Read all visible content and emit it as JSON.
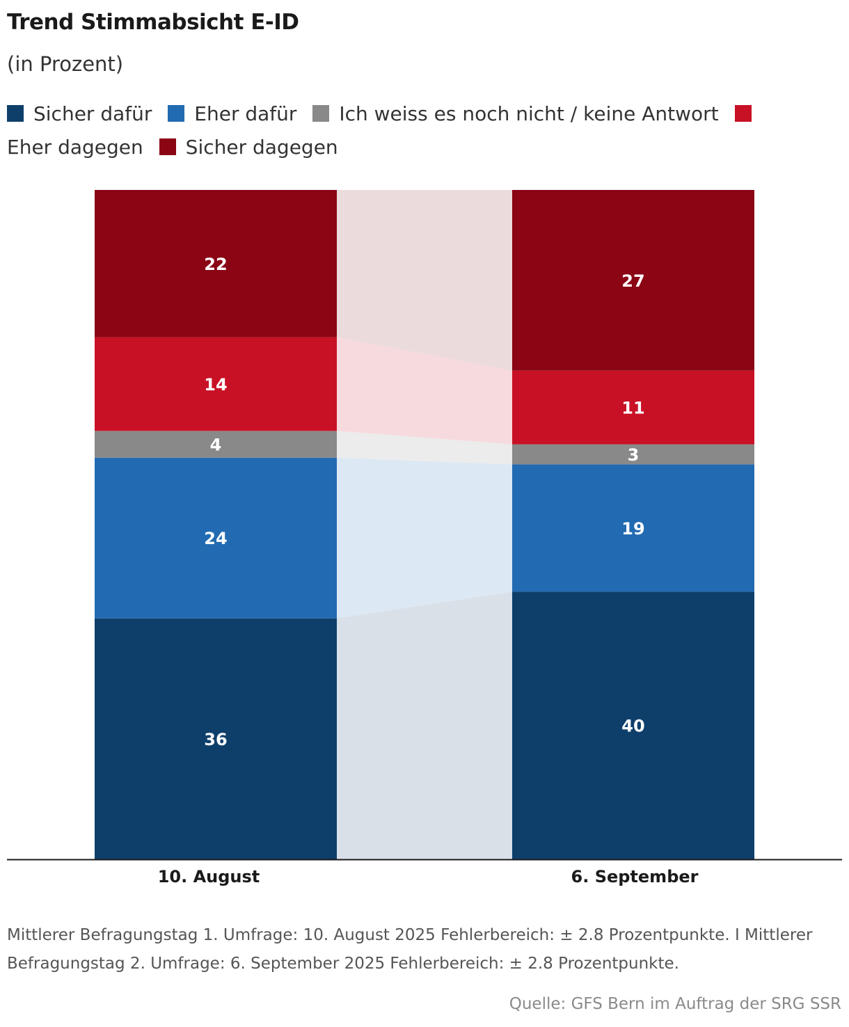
{
  "title": "Trend Stimmabsicht E-ID",
  "subtitle": "(in Prozent)",
  "legend": [
    {
      "label": "Sicher dafür",
      "color": "#0e3f6b"
    },
    {
      "label": "Eher dafür",
      "color": "#226bb2"
    },
    {
      "label": "Ich weiss es noch nicht / keine Antwort",
      "color": "#898989"
    },
    {
      "label": "Eher dagegen",
      "color": "#c91126"
    },
    {
      "label": "Sicher dagegen",
      "color": "#8b0515"
    }
  ],
  "chart_data": {
    "type": "bar",
    "stacked": true,
    "categories": [
      "10. August",
      "6. September"
    ],
    "series": [
      {
        "name": "Sicher dafür",
        "color": "#0e3f6b",
        "flow_color": "#d9e0e8",
        "values": [
          36,
          40
        ]
      },
      {
        "name": "Eher dafür",
        "color": "#226bb2",
        "flow_color": "#dce8f4",
        "values": [
          24,
          19
        ]
      },
      {
        "name": "Ich weiss es noch nicht / keine Antwort",
        "color": "#898989",
        "flow_color": "#ececec",
        "values": [
          4,
          3
        ]
      },
      {
        "name": "Eher dagegen",
        "color": "#c91126",
        "flow_color": "#f7dadd",
        "values": [
          14,
          11
        ]
      },
      {
        "name": "Sicher dagegen",
        "color": "#8b0515",
        "flow_color": "#ecdbdc",
        "values": [
          22,
          27
        ]
      }
    ],
    "ylim": [
      0,
      100
    ],
    "grid": false
  },
  "footnote": "Mittlerer Befragungstag 1. Umfrage: 10. August 2025 Fehlerbereich: ± 2.8 Prozentpunkte. I Mittlerer Befragungstag 2. Umfrage: 6. September 2025 Fehlerbereich: ± 2.8 Prozentpunkte.",
  "source": "Quelle: GFS Bern im Auftrag der SRG SSR"
}
